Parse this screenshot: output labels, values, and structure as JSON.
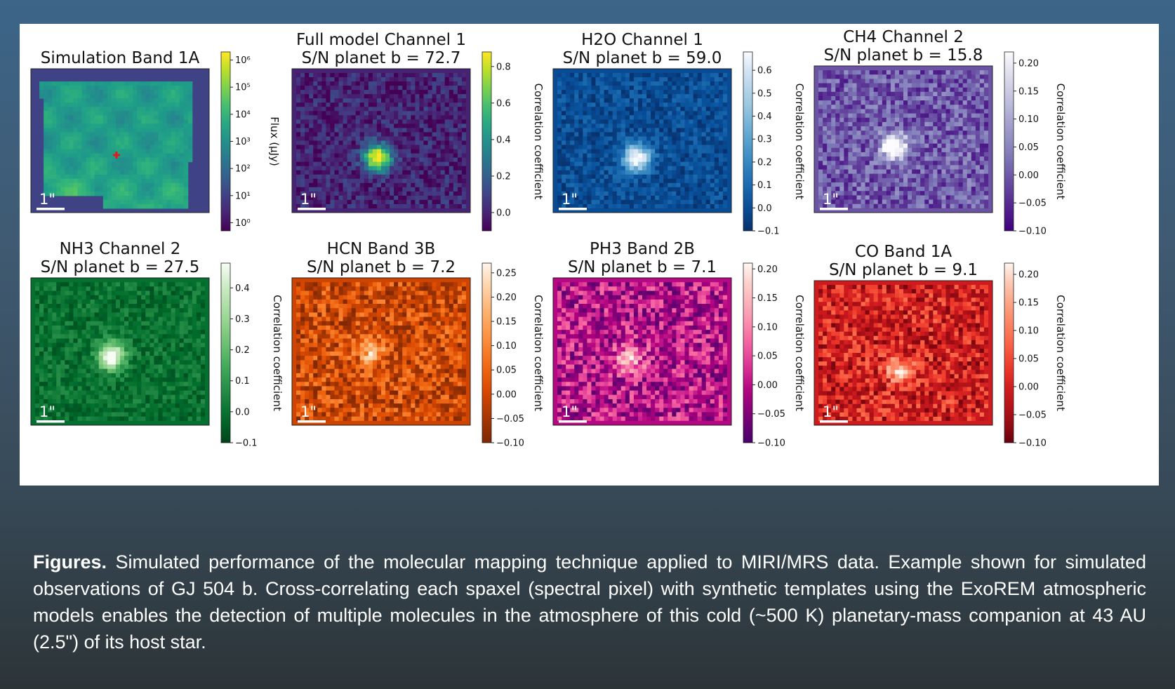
{
  "colors": {
    "background_top": "#3c6588",
    "background_bottom": "#2c3438",
    "figure_bg": "#ffffff",
    "caption_text": "#ffffff"
  },
  "panels": [
    {
      "title_line1": "Simulation Band 1A",
      "title_line2": "",
      "colormap": "viridis",
      "cbar_label": "Flux (μJy)",
      "ticks": [
        "10⁶",
        "10⁵",
        "10⁴",
        "10³",
        "10²",
        "10¹",
        "10⁰"
      ],
      "tick_values": [
        6,
        5,
        4,
        3,
        2,
        1,
        0
      ],
      "vmin": -0.3,
      "vmax": 6.3,
      "planet": [
        0.48,
        0.6
      ],
      "scale_label": "1\""
    },
    {
      "title_line1": "Full model Channel 1",
      "title_line2": "S/N planet b = 72.7",
      "colormap": "viridis",
      "cbar_label": "Correlation coefficient",
      "ticks": [
        "0.8",
        "0.6",
        "0.4",
        "0.2",
        "0.0"
      ],
      "tick_values": [
        0.8,
        0.6,
        0.4,
        0.2,
        0.0
      ],
      "vmin": -0.1,
      "vmax": 0.88,
      "planet": [
        0.48,
        0.62
      ],
      "scale_label": "1\""
    },
    {
      "title_line1": "H2O Channel 1",
      "title_line2": "S/N planet b = 59.0",
      "colormap": "blues",
      "cbar_label": "Correlation coefficient",
      "ticks": [
        "0.6",
        "0.5",
        "0.4",
        "0.3",
        "0.2",
        "0.1",
        "0.0",
        "−0.1"
      ],
      "tick_values": [
        0.6,
        0.5,
        0.4,
        0.3,
        0.2,
        0.1,
        0.0,
        -0.1
      ],
      "vmin": -0.1,
      "vmax": 0.68,
      "planet": [
        0.47,
        0.62
      ],
      "scale_label": "1\""
    },
    {
      "title_line1": "CH4 Channel 2",
      "title_line2": "S/N planet b = 15.8",
      "colormap": "purples",
      "cbar_label": "Correlation coefficient",
      "ticks": [
        "0.20",
        "0.15",
        "0.10",
        "0.05",
        "0.00",
        "−0.05",
        "−0.10"
      ],
      "tick_values": [
        0.2,
        0.15,
        0.1,
        0.05,
        0.0,
        -0.05,
        -0.1
      ],
      "vmin": -0.1,
      "vmax": 0.22,
      "planet": [
        0.45,
        0.55
      ],
      "scale_label": "1\""
    },
    {
      "title_line1": "NH3 Channel 2",
      "title_line2": "S/N planet b = 27.5",
      "colormap": "greens",
      "cbar_label": "Correlation coefficient",
      "ticks": [
        "0.4",
        "0.3",
        "0.2",
        "0.1",
        "0.0",
        "−0.1"
      ],
      "tick_values": [
        0.4,
        0.3,
        0.2,
        0.1,
        0.0,
        -0.1
      ],
      "vmin": -0.1,
      "vmax": 0.48,
      "planet": [
        0.45,
        0.53
      ],
      "scale_label": "1\""
    },
    {
      "title_line1": "HCN Band 3B",
      "title_line2": "S/N planet b = 7.2",
      "colormap": "oranges",
      "cbar_label": "Correlation coefficient",
      "ticks": [
        "0.25",
        "0.20",
        "0.15",
        "0.10",
        "0.05",
        "0.00",
        "−0.05",
        "−0.10"
      ],
      "tick_values": [
        0.25,
        0.2,
        0.15,
        0.1,
        0.05,
        0.0,
        -0.05,
        -0.1
      ],
      "vmin": -0.1,
      "vmax": 0.27,
      "planet": [
        0.45,
        0.5
      ],
      "scale_label": "1\""
    },
    {
      "title_line1": "PH3 Band 2B",
      "title_line2": "S/N planet b = 7.1",
      "colormap": "rdpu",
      "cbar_label": "Correlation coefficient",
      "ticks": [
        "0.20",
        "0.15",
        "0.10",
        "0.05",
        "0.00",
        "−0.05",
        "−0.10"
      ],
      "tick_values": [
        0.2,
        0.15,
        0.1,
        0.05,
        0.0,
        -0.05,
        -0.1
      ],
      "vmin": -0.1,
      "vmax": 0.21,
      "planet": [
        0.43,
        0.55
      ],
      "scale_label": "1\""
    },
    {
      "title_line1": "CO Band 1A",
      "title_line2": "S/N planet b = 9.1",
      "colormap": "reds",
      "cbar_label": "Correlation coefficient",
      "ticks": [
        "0.20",
        "0.15",
        "0.10",
        "0.05",
        "0.00",
        "−0.05",
        "−0.10"
      ],
      "tick_values": [
        0.2,
        0.15,
        0.1,
        0.05,
        0.0,
        -0.05,
        -0.1
      ],
      "vmin": -0.1,
      "vmax": 0.22,
      "planet": [
        0.48,
        0.62
      ],
      "scale_label": "1\""
    }
  ],
  "caption": {
    "bold": "Figures.",
    "text": " Simulated performance of the molecular mapping technique applied to MIRI/MRS data. Example shown for simulated observations of GJ 504 b. Cross-correlating each spaxel (spectral pixel) with synthetic templates using the ExoREM atmospheric models enables the detection of multiple molecules in the atmosphere of this cold (~500 K) planetary-mass companion at 43 AU (2.5\") of its host star."
  }
}
